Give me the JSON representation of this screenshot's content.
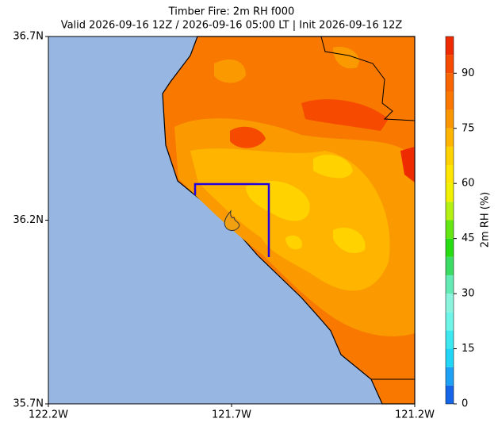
{
  "title": "Timber Fire: 2m RH f000",
  "subtitle": "Valid 2026-09-16 12Z / 2026-09-16 05:00 LT | Init 2026-09-16 12Z",
  "map": {
    "xlim": [
      -122.2,
      -121.2
    ],
    "ylim": [
      35.7,
      36.7
    ],
    "xticks": [
      {
        "value": -122.2,
        "label": "122.2W"
      },
      {
        "value": -121.7,
        "label": "121.7W"
      },
      {
        "value": -121.2,
        "label": "121.2W"
      }
    ],
    "yticks": [
      {
        "value": 35.7,
        "label": "35.7N"
      },
      {
        "value": 36.2,
        "label": "36.2N"
      },
      {
        "value": 36.7,
        "label": "36.7N"
      }
    ]
  },
  "colorbar": {
    "label": "2m RH (%)",
    "levels": [
      0,
      5,
      10,
      15,
      20,
      25,
      30,
      35,
      40,
      45,
      50,
      55,
      60,
      65,
      70,
      75,
      80,
      85,
      90,
      95,
      100
    ],
    "colors": [
      "#1565e6",
      "#1ea0f5",
      "#22d4f5",
      "#3ee8f0",
      "#6ef5e8",
      "#8af5dc",
      "#64eab4",
      "#3cdc64",
      "#28dc14",
      "#64e614",
      "#b4f014",
      "#f0f000",
      "#ffe600",
      "#ffd200",
      "#ffb400",
      "#fa9600",
      "#fa7800",
      "#f86400",
      "#f54a00",
      "#ee2a00"
    ],
    "ticks": [
      0,
      15,
      30,
      45,
      60,
      75,
      90
    ]
  }
}
